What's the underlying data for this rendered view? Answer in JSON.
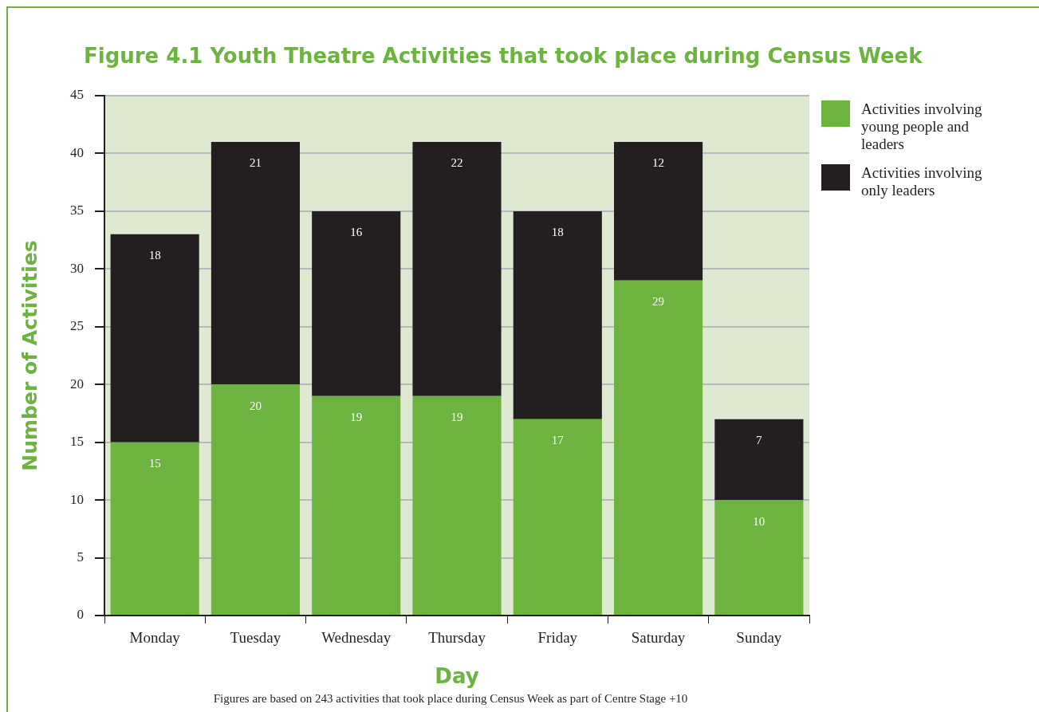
{
  "chart_data": {
    "type": "bar",
    "title": "Figure 4.1 Youth Theatre Activities that took place during Census Week",
    "xlabel": "Day",
    "ylabel": "Number of Activities",
    "categories": [
      "Monday",
      "Tuesday",
      "Wednesday",
      "Thursday",
      "Friday",
      "Saturday",
      "Sunday"
    ],
    "series": [
      {
        "name": "Activities involving young people and leaders",
        "color": "#6db33f",
        "values": [
          15,
          20,
          19,
          19,
          17,
          29,
          10
        ]
      },
      {
        "name": "Activities involving only leaders",
        "color": "#231f20",
        "values": [
          18,
          21,
          16,
          22,
          18,
          12,
          7
        ]
      }
    ],
    "stacked": true,
    "data_labels": true,
    "ylim": [
      0,
      45
    ],
    "yticks": [
      0,
      5,
      10,
      15,
      20,
      25,
      30,
      35,
      40,
      45
    ],
    "grid": "y",
    "legend": "top right",
    "annotations": [
      "Figures are based on 243 activities that took place during Census Week as part of Centre Stage +10"
    ]
  }
}
